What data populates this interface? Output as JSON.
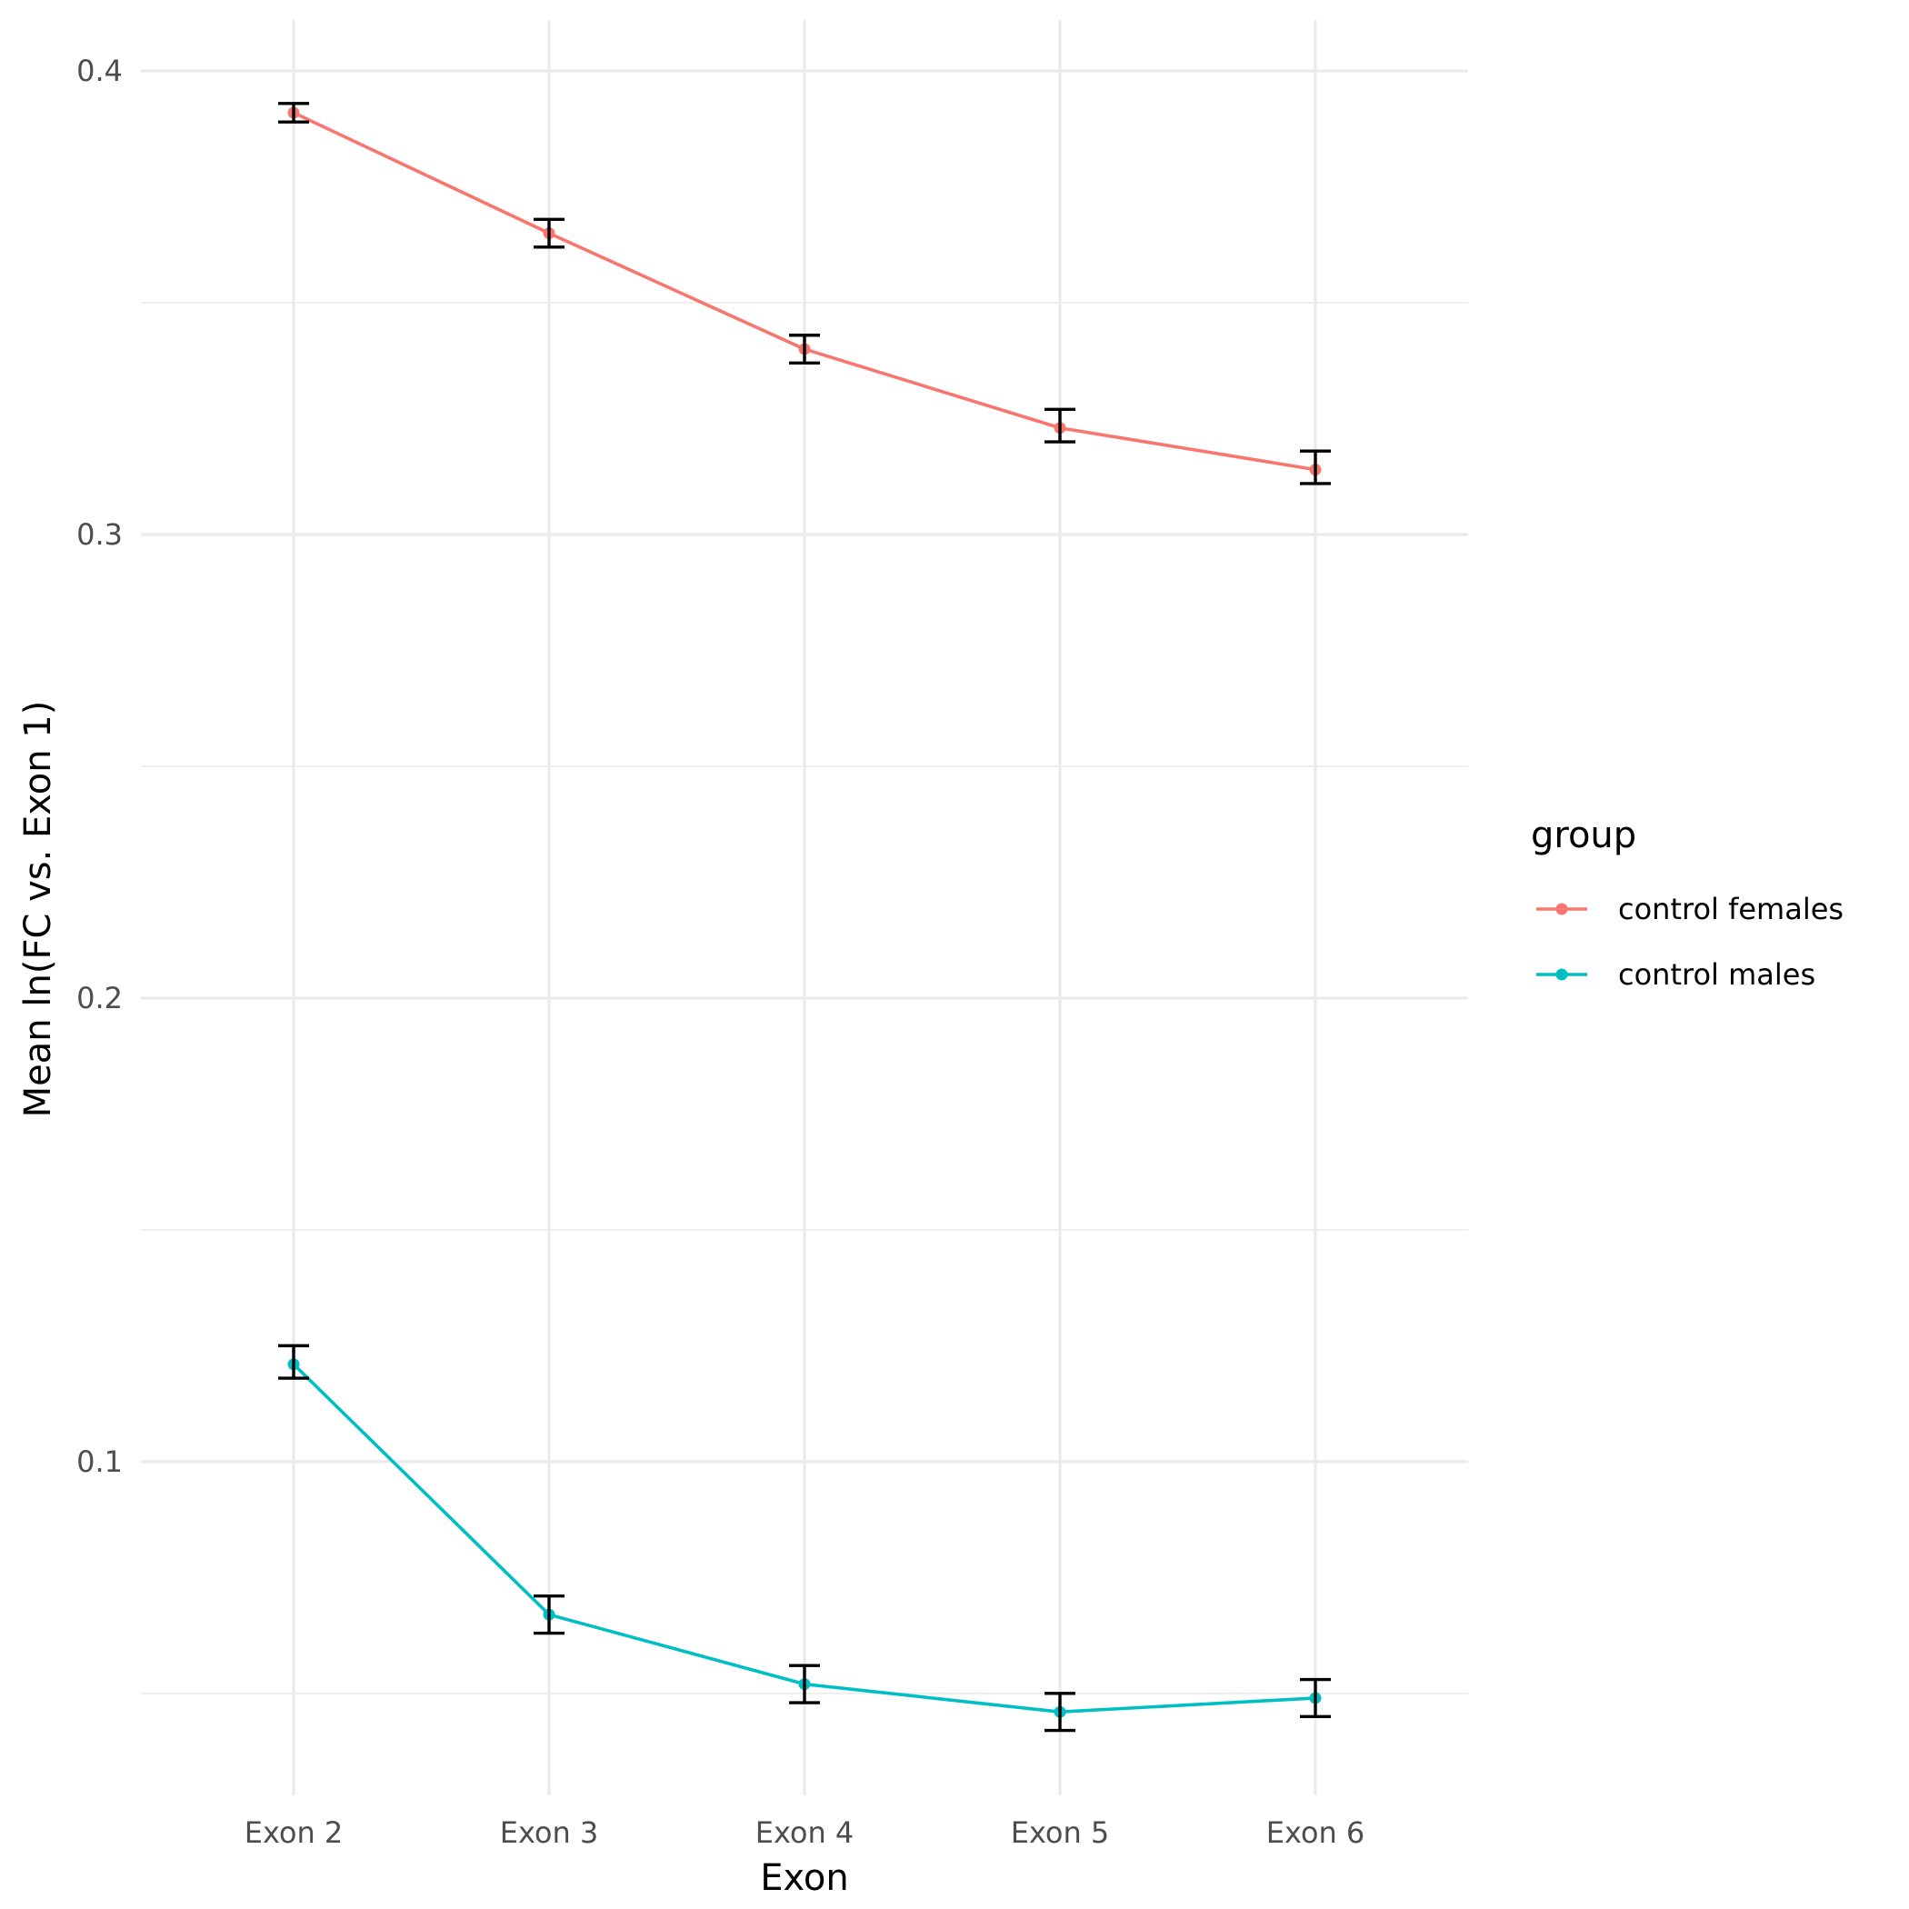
{
  "chart_data": {
    "type": "line",
    "title": "",
    "xlabel": "Exon",
    "ylabel": "Mean ln(FC vs. Exon 1)",
    "categories": [
      "Exon 2",
      "Exon 3",
      "Exon 4",
      "Exon 5",
      "Exon 6"
    ],
    "ylim": [
      0.028,
      0.411
    ],
    "y_ticks": [
      0.1,
      0.2,
      0.3,
      0.4
    ],
    "y_tick_labels": [
      "0.1",
      "0.2",
      "0.3",
      "0.4"
    ],
    "y_minor_ticks": [
      0.05,
      0.15,
      0.25,
      0.35
    ],
    "grid": true,
    "legend": {
      "title": "group",
      "position": "right"
    },
    "series": [
      {
        "name": "control females",
        "color": "#F8766D",
        "values": [
          0.391,
          0.365,
          0.34,
          0.323,
          0.314
        ],
        "err_low": [
          0.389,
          0.362,
          0.337,
          0.32,
          0.311
        ],
        "err_high": [
          0.393,
          0.368,
          0.343,
          0.327,
          0.318
        ]
      },
      {
        "name": "control males",
        "color": "#00BFC4",
        "values": [
          0.121,
          0.067,
          0.052,
          0.046,
          0.049
        ],
        "err_low": [
          0.118,
          0.063,
          0.048,
          0.042,
          0.045
        ],
        "err_high": [
          0.125,
          0.071,
          0.056,
          0.05,
          0.053
        ]
      }
    ]
  }
}
